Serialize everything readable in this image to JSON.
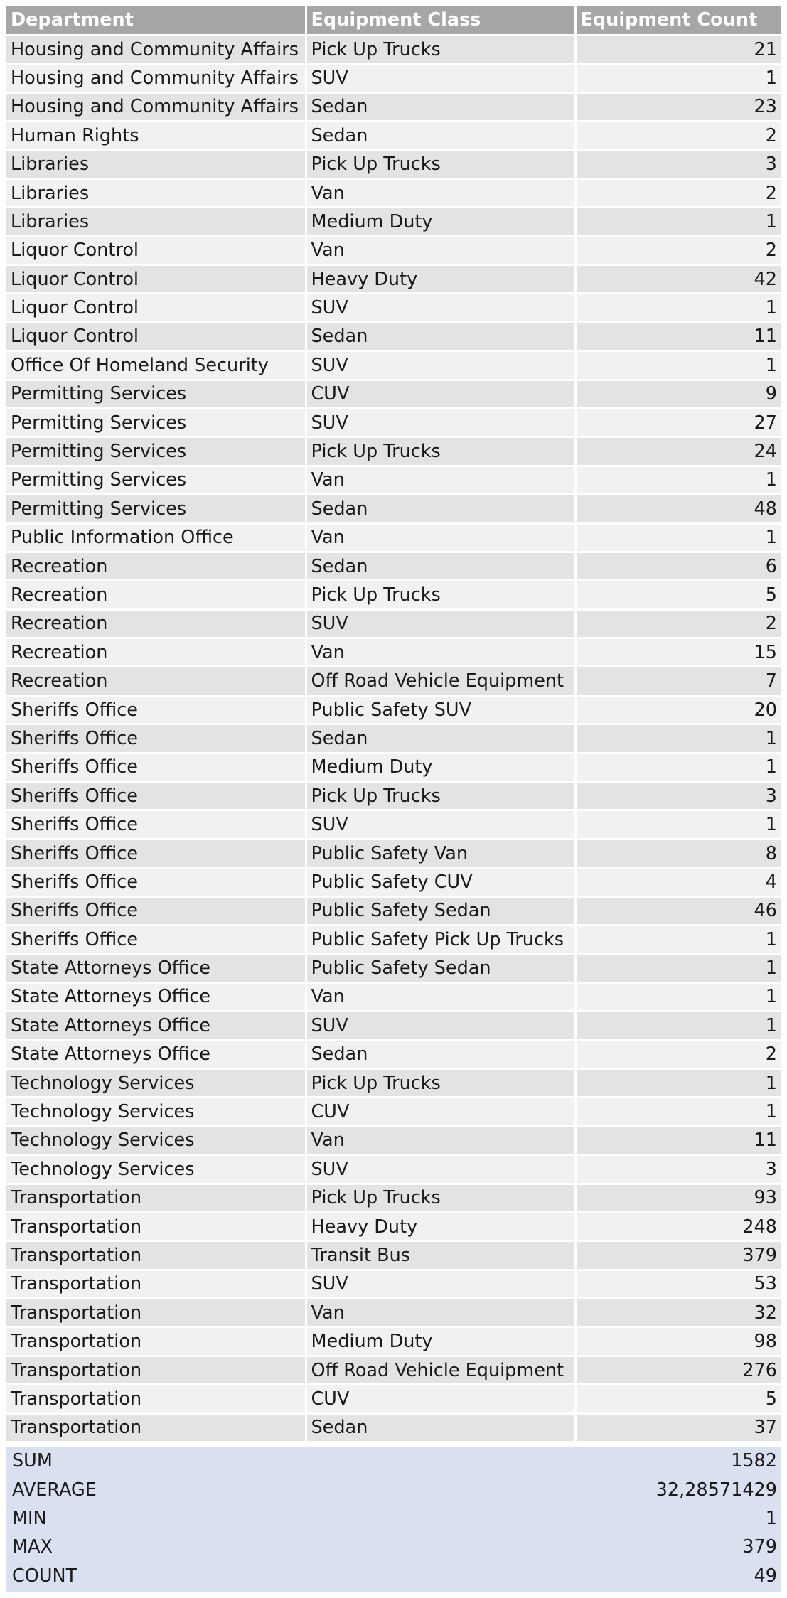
{
  "table": {
    "headers": [
      "Department",
      "Equipment Class",
      "Equipment Count"
    ],
    "rows": [
      [
        "Housing and Community Affairs",
        "Pick Up Trucks",
        "21"
      ],
      [
        "Housing and Community Affairs",
        "SUV",
        "1"
      ],
      [
        "Housing and Community Affairs",
        "Sedan",
        "23"
      ],
      [
        "Human Rights",
        "Sedan",
        "2"
      ],
      [
        "Libraries",
        "Pick Up Trucks",
        "3"
      ],
      [
        "Libraries",
        "Van",
        "2"
      ],
      [
        "Libraries",
        "Medium Duty",
        "1"
      ],
      [
        "Liquor Control",
        "Van",
        "2"
      ],
      [
        "Liquor Control",
        "Heavy Duty",
        "42"
      ],
      [
        "Liquor Control",
        "SUV",
        "1"
      ],
      [
        "Liquor Control",
        "Sedan",
        "11"
      ],
      [
        "Office Of Homeland Security",
        "SUV",
        "1"
      ],
      [
        "Permitting Services",
        "CUV",
        "9"
      ],
      [
        "Permitting Services",
        "SUV",
        "27"
      ],
      [
        "Permitting Services",
        "Pick Up Trucks",
        "24"
      ],
      [
        "Permitting Services",
        "Van",
        "1"
      ],
      [
        "Permitting Services",
        "Sedan",
        "48"
      ],
      [
        "Public Information Office",
        "Van",
        "1"
      ],
      [
        "Recreation",
        "Sedan",
        "6"
      ],
      [
        "Recreation",
        "Pick Up Trucks",
        "5"
      ],
      [
        "Recreation",
        "SUV",
        "2"
      ],
      [
        "Recreation",
        "Van",
        "15"
      ],
      [
        "Recreation",
        "Off Road Vehicle Equipment",
        "7"
      ],
      [
        "Sheriffs Office",
        "Public Safety SUV",
        "20"
      ],
      [
        "Sheriffs Office",
        "Sedan",
        "1"
      ],
      [
        "Sheriffs Office",
        "Medium Duty",
        "1"
      ],
      [
        "Sheriffs Office",
        "Pick Up Trucks",
        "3"
      ],
      [
        "Sheriffs Office",
        "SUV",
        "1"
      ],
      [
        "Sheriffs Office",
        "Public Safety Van",
        "8"
      ],
      [
        "Sheriffs Office",
        "Public Safety CUV",
        "4"
      ],
      [
        "Sheriffs Office",
        "Public Safety Sedan",
        "46"
      ],
      [
        "Sheriffs Office",
        "Public Safety Pick Up Trucks",
        "1"
      ],
      [
        "State Attorneys Office",
        "Public Safety Sedan",
        "1"
      ],
      [
        "State Attorneys Office",
        "Van",
        "1"
      ],
      [
        "State Attorneys Office",
        "SUV",
        "1"
      ],
      [
        "State Attorneys Office",
        "Sedan",
        "2"
      ],
      [
        "Technology Services",
        "Pick Up Trucks",
        "1"
      ],
      [
        "Technology Services",
        "CUV",
        "1"
      ],
      [
        "Technology Services",
        "Van",
        "11"
      ],
      [
        "Technology Services",
        "SUV",
        "3"
      ],
      [
        "Transportation",
        "Pick Up Trucks",
        "93"
      ],
      [
        "Transportation",
        "Heavy Duty",
        "248"
      ],
      [
        "Transportation",
        "Transit Bus",
        "379"
      ],
      [
        "Transportation",
        "SUV",
        "53"
      ],
      [
        "Transportation",
        "Van",
        "32"
      ],
      [
        "Transportation",
        "Medium Duty",
        "98"
      ],
      [
        "Transportation",
        "Off Road Vehicle Equipment",
        "276"
      ],
      [
        "Transportation",
        "CUV",
        "5"
      ],
      [
        "Transportation",
        "Sedan",
        "37"
      ]
    ]
  },
  "summary": [
    {
      "label": "SUM",
      "value": "1582"
    },
    {
      "label": "AVERAGE",
      "value": "32,28571429"
    },
    {
      "label": "MIN",
      "value": "1"
    },
    {
      "label": "MAX",
      "value": "379"
    },
    {
      "label": "COUNT",
      "value": "49"
    }
  ],
  "colors": {
    "header_bg": "#a6a6a6",
    "row_dark": "#e3e3e3",
    "row_light": "#f1f1f1",
    "summary_bg": "#d9e0f0"
  }
}
